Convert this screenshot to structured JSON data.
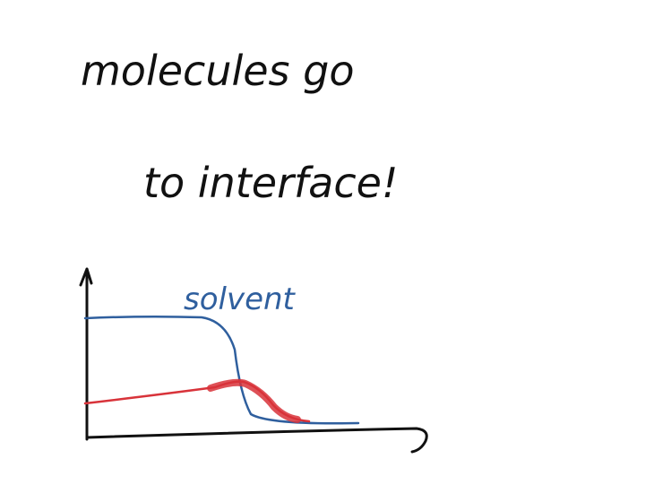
{
  "text": {
    "lines": [
      "molecules go",
      "to interface!"
    ]
  },
  "diagram": {
    "curve_label": "solvent"
  }
}
